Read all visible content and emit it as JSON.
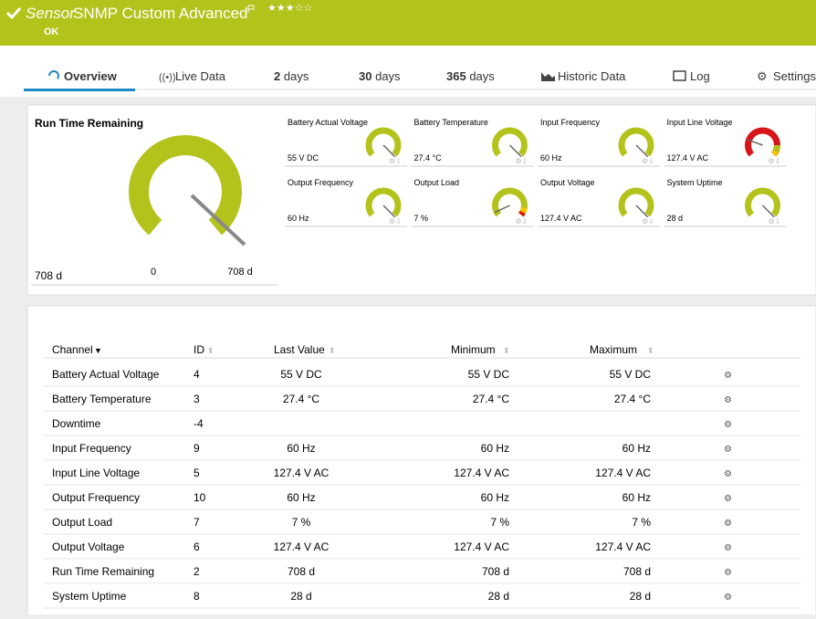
{
  "header": {
    "kind": "Sensor",
    "title": "SNMP Custom Advanced",
    "status": "OK"
  },
  "tabs": [
    {
      "label": "Overview"
    },
    {
      "label": "Live Data"
    },
    {
      "count": "2",
      "label": "days"
    },
    {
      "count": "30",
      "label": "days"
    },
    {
      "count": "365",
      "label": "days"
    },
    {
      "label": "Historic Data"
    },
    {
      "label": "Log"
    },
    {
      "label": "Settings"
    }
  ],
  "main_gauge": {
    "title": "Run Time Remaining",
    "value": "708 d",
    "min": "0",
    "max": "708 d"
  },
  "gauges": [
    {
      "name": "Battery Actual Voltage",
      "value": "55 V DC"
    },
    {
      "name": "Battery Temperature",
      "value": "27.4 °C"
    },
    {
      "name": "Input Frequency",
      "value": "60 Hz"
    },
    {
      "name": "Input Line Voltage",
      "value": "127.4 V AC"
    },
    {
      "name": "Output Frequency",
      "value": "60 Hz"
    },
    {
      "name": "Output Load",
      "value": "7 %"
    },
    {
      "name": "Output Voltage",
      "value": "127.4 V AC"
    },
    {
      "name": "System Uptime",
      "value": "28 d"
    }
  ],
  "table": {
    "headers": {
      "channel": "Channel",
      "id": "ID",
      "last": "Last Value",
      "min": "Minimum",
      "max": "Maximum"
    },
    "rows": [
      {
        "channel": "Battery Actual Voltage",
        "id": "4",
        "last": "55 V DC",
        "min": "55 V DC",
        "max": "55 V DC"
      },
      {
        "channel": "Battery Temperature",
        "id": "3",
        "last": "27.4 °C",
        "min": "27.4 °C",
        "max": "27.4 °C"
      },
      {
        "channel": "Downtime",
        "id": "-4"
      },
      {
        "channel": "Input Frequency",
        "id": "9",
        "last": "60 Hz",
        "min": "60 Hz",
        "max": "60 Hz"
      },
      {
        "channel": "Input Line Voltage",
        "id": "5",
        "last": "127.4 V AC",
        "min": "127.4 V AC",
        "max": "127.4 V AC"
      },
      {
        "channel": "Output Frequency",
        "id": "10",
        "last": "60 Hz",
        "min": "60 Hz",
        "max": "60 Hz"
      },
      {
        "channel": "Output Load",
        "id": "7",
        "last": "7 %",
        "min": "7 %",
        "max": "7 %"
      },
      {
        "channel": "Output Voltage",
        "id": "6",
        "last": "127.4 V AC",
        "min": "127.4 V AC",
        "max": "127.4 V AC"
      },
      {
        "channel": "Run Time Remaining",
        "id": "2",
        "last": "708 d",
        "min": "708 d",
        "max": "708 d"
      },
      {
        "channel": "System Uptime",
        "id": "8",
        "last": "28 d",
        "min": "28 d",
        "max": "28 d"
      }
    ]
  }
}
